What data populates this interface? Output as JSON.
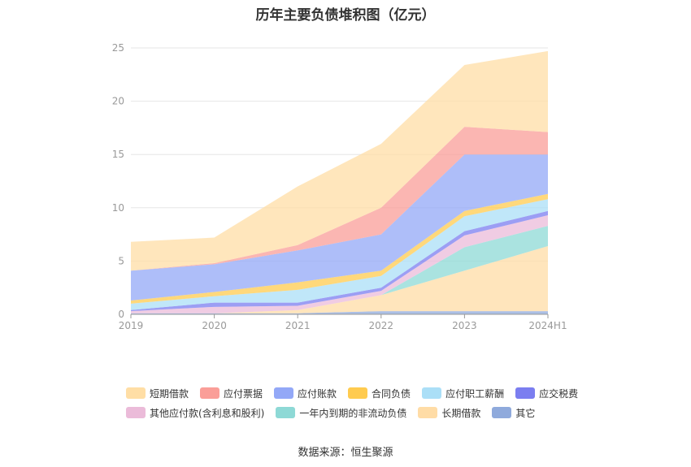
{
  "chart_data": {
    "type": "area",
    "title": "历年主要负债堆积图（亿元）",
    "categories": [
      "2019",
      "2020",
      "2021",
      "2022",
      "2023",
      "2024H1"
    ],
    "ylim": [
      0,
      25
    ],
    "yticks": [
      0,
      5,
      10,
      15,
      20,
      25
    ],
    "grid": true,
    "legend_position": "bottom",
    "series": [
      {
        "name": "其它",
        "color": "#8FAADC",
        "values": [
          0.1,
          0.1,
          0.1,
          0.3,
          0.3,
          0.3
        ]
      },
      {
        "name": "长期借款",
        "color": "#FFDCA6",
        "values": [
          0,
          0,
          0.3,
          1.5,
          3.8,
          6.1
        ]
      },
      {
        "name": "一年内到期的非流动负债",
        "color": "#8ED9D6",
        "values": [
          0,
          0,
          0,
          0,
          2.2,
          1.9
        ]
      },
      {
        "name": "其他应付款(含利息和股利)",
        "color": "#EBBBD9",
        "values": [
          0.2,
          0.6,
          0.4,
          0.4,
          1.1,
          1.0
        ]
      },
      {
        "name": "应交税费",
        "color": "#7B7EF0",
        "values": [
          0.1,
          0.4,
          0.3,
          0.3,
          0.4,
          0.4
        ]
      },
      {
        "name": "应付职工薪酬",
        "color": "#ABDFF7",
        "values": [
          0.6,
          0.6,
          1.2,
          1.1,
          1.4,
          1.1
        ]
      },
      {
        "name": "合同负债",
        "color": "#FFCB4F",
        "values": [
          0.3,
          0.4,
          0.7,
          0.5,
          0.5,
          0.5
        ]
      },
      {
        "name": "应付账款",
        "color": "#93A8F7",
        "values": [
          2.8,
          2.6,
          3.0,
          3.4,
          5.3,
          3.7
        ]
      },
      {
        "name": "应付票据",
        "color": "#FA9E98",
        "values": [
          0,
          0.1,
          0.5,
          2.5,
          2.6,
          2.1
        ]
      },
      {
        "name": "短期借款",
        "color": "#FFDEA5",
        "values": [
          2.7,
          2.4,
          5.5,
          6.0,
          5.8,
          7.6
        ]
      }
    ],
    "legend_order": [
      "短期借款",
      "应付票据",
      "应付账款",
      "合同负债",
      "应付职工薪酬",
      "应交税费",
      "其他应付款(含利息和股利)",
      "一年内到期的非流动负债",
      "长期借款",
      "其它"
    ]
  },
  "source_text": "数据来源：恒生聚源"
}
